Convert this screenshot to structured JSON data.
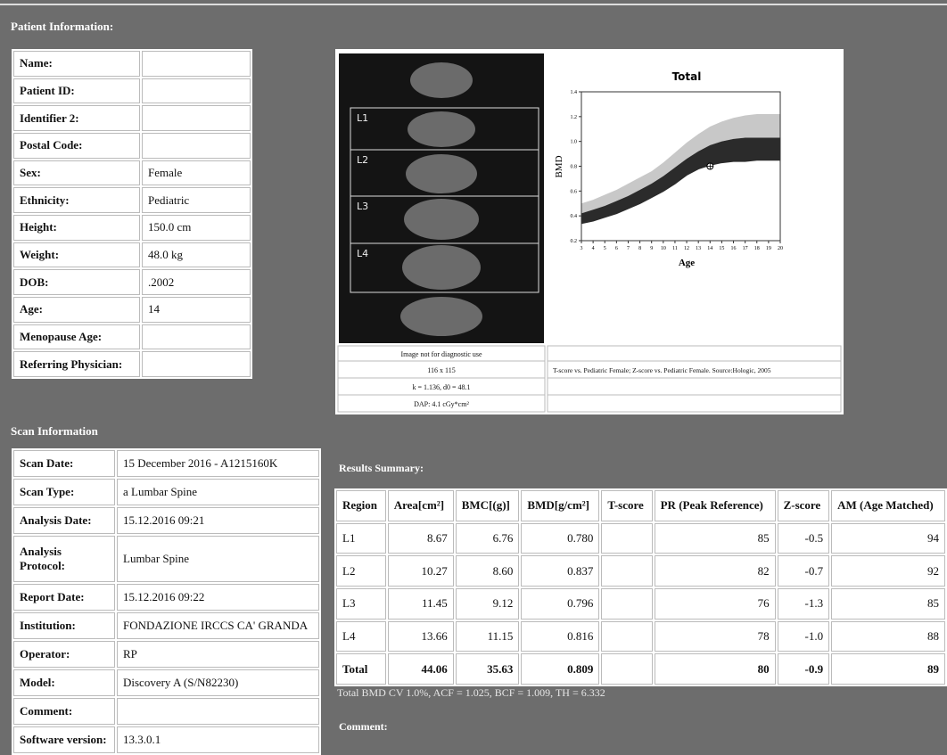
{
  "sections": {
    "patient_title": "Patient Information:",
    "scan_title": "Scan Information",
    "results_title": "Results Summary:",
    "comment_label": "Comment:"
  },
  "patient_info": {
    "rows": [
      [
        "Name:"
      ],
      [
        "Patient ID:"
      ],
      [
        "Identifier 2:"
      ],
      [
        "Postal Code:"
      ],
      [
        "Sex:",
        "Female"
      ],
      [
        "Ethnicity:",
        "Pediatric"
      ],
      [
        "Height:",
        "150.0 cm"
      ],
      [
        "Weight:",
        "48.0 kg"
      ],
      [
        "DOB:",
        ".2002"
      ],
      [
        "Age:",
        "14"
      ],
      [
        "Menopause Age:"
      ],
      [
        "Referring Physician:"
      ]
    ]
  },
  "image_panel": {
    "vertebra_labels": [
      "L1",
      "L2",
      "L3",
      "L4"
    ],
    "image_notes": [
      "Image not for diagnostic use",
      "116 x 115",
      "k = 1.136, d0 = 48.1",
      "DAP: 4.1 cGy*cm²"
    ],
    "reference_note": "T-score vs. Pediatric Female; Z-score vs. Pediatric Female. Source:Hologic, 2005"
  },
  "chart_data": {
    "type": "band",
    "title": "Total",
    "x_label": "Age",
    "y_label": "BMD",
    "x": [
      3,
      4,
      5,
      6,
      7,
      8,
      9,
      10,
      11,
      12,
      13,
      14,
      15,
      16,
      17,
      18,
      19,
      20
    ],
    "series": [
      {
        "color": "#c8c8c8",
        "values": [
          0.5,
          0.53,
          0.57,
          0.61,
          0.66,
          0.71,
          0.76,
          0.83,
          0.91,
          0.99,
          1.06,
          1.12,
          1.16,
          1.19,
          1.21,
          1.22,
          1.22,
          1.22
        ]
      },
      {
        "color": "#2b2b2b",
        "values": [
          0.42,
          0.45,
          0.48,
          0.52,
          0.56,
          0.61,
          0.66,
          0.72,
          0.79,
          0.86,
          0.92,
          0.97,
          1.0,
          1.02,
          1.03,
          1.03,
          1.03,
          1.03
        ]
      },
      {
        "color": "#2b2b2b",
        "values": [
          0.34,
          0.36,
          0.39,
          0.42,
          0.46,
          0.5,
          0.55,
          0.6,
          0.66,
          0.73,
          0.78,
          0.81,
          0.83,
          0.84,
          0.84,
          0.85,
          0.85,
          0.85
        ]
      }
    ],
    "marker": {
      "x": 14,
      "y": 0.8
    },
    "xlim": [
      3,
      20
    ],
    "xticks": [
      3,
      4,
      5,
      6,
      7,
      8,
      9,
      10,
      11,
      12,
      13,
      14,
      15,
      16,
      17,
      18,
      19,
      20
    ],
    "ylim": [
      0.2,
      1.4
    ],
    "yticks": [
      0.2,
      0.4,
      0.6,
      0.8,
      {
        "value": 1,
        "label": "1.0"
      },
      1.2,
      1.4
    ]
  },
  "scan_info": {
    "rows": [
      [
        "Scan Date:",
        "15 December 2016 - A1215160K"
      ],
      [
        "Scan Type:",
        "a Lumbar Spine"
      ],
      [
        "Analysis Date:",
        "15.12.2016 09:21"
      ],
      [
        "Analysis Protocol:",
        "Lumbar Spine"
      ],
      [
        "Report Date:",
        "15.12.2016 09:22"
      ],
      [
        "Institution:",
        "FONDAZIONE IRCCS CA' GRANDA"
      ],
      [
        "Operator:",
        "RP"
      ],
      [
        "Model:",
        "Discovery A (S/N82230)"
      ],
      [
        "Comment:"
      ],
      [
        "Software version:",
        "13.3.0.1"
      ]
    ]
  },
  "results": {
    "header": [
      "Region",
      "Area[cm²]",
      "BMC[(g)]",
      "BMD[g/cm²]",
      "T-score",
      "PR (Peak Reference)",
      "Z-score",
      "AM (Age Matched)"
    ],
    "rows": [
      [
        "L1",
        "8.67",
        "6.76",
        "0.780",
        null,
        "85",
        "-0.5",
        "94"
      ],
      [
        "L2",
        "10.27",
        "8.60",
        "0.837",
        null,
        "82",
        "-0.7",
        "92"
      ],
      [
        "L3",
        "11.45",
        "9.12",
        "0.796",
        null,
        "76",
        "-1.3",
        "85"
      ],
      [
        "L4",
        "13.66",
        "11.15",
        "0.816",
        null,
        "78",
        "-1.0",
        "88"
      ],
      [
        "Total",
        "44.06",
        "35.63",
        "0.809",
        null,
        "80",
        "-0.9",
        "89"
      ]
    ],
    "footnote": "Total BMD CV 1.0%, ACF = 1.025, BCF = 1.009, TH = 6.332"
  }
}
